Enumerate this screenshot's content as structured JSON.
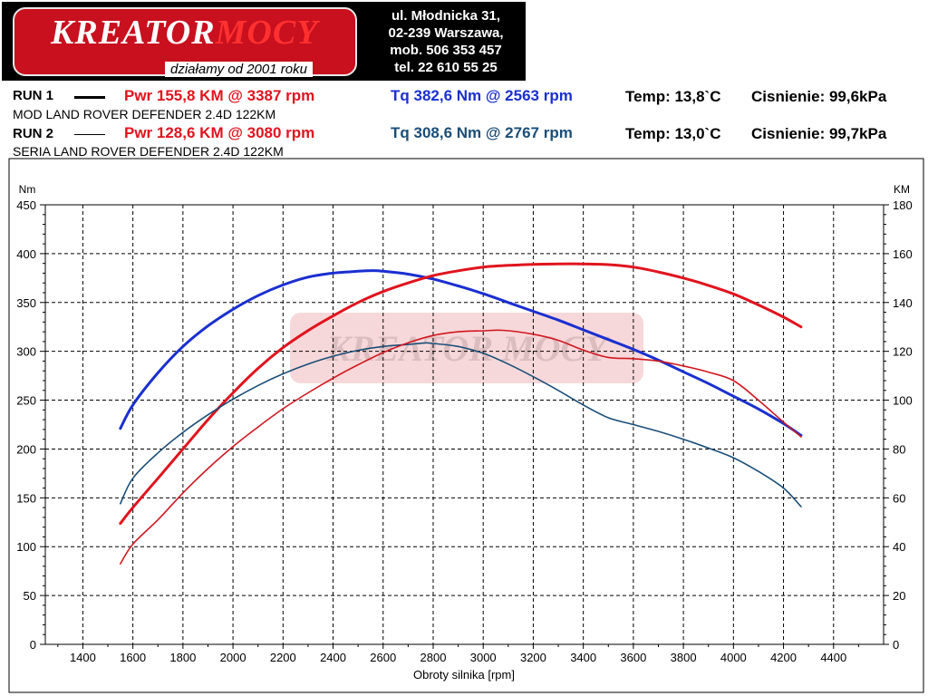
{
  "logo": {
    "brand_a": "KREATOR",
    "brand_b": "MOCY",
    "tagline": "działamy od 2001 roku"
  },
  "contact": {
    "line1": "ul. Młodnicka 31,",
    "line2": "02-239  Warszawa,",
    "line3": "mob.  506 353 457",
    "line4": "tel.  22 610 55 25"
  },
  "runs": [
    {
      "label": "RUN 1",
      "pwr": "Pwr  155,8 KM @ 3387 rpm",
      "tq": "Tq 382,6 Nm @ 2563 rpm",
      "temp": "Temp: 13,8`C",
      "pressure": "Cisnienie: 99,6kPa",
      "description": "MOD LAND ROVER DEFENDER 2.4D 122KM"
    },
    {
      "label": "RUN 2",
      "pwr": "Pwr  128,6 KM @ 3080 rpm",
      "tq": "Tq 308,6 Nm @ 2767 rpm",
      "temp": "Temp: 13,0`C",
      "pressure": "Cisnienie: 99,7kPa",
      "description": "SERIA LAND ROVER DEFENDER 2.4D 122KM"
    }
  ],
  "chart_data": {
    "type": "line",
    "xlabel": "Obroty silnika [rpm]",
    "ylabel_left": "Nm",
    "ylabel_right": "KM",
    "xlim": [
      1250,
      4600
    ],
    "ylim_left": [
      0,
      450
    ],
    "ylim_right": [
      0,
      180
    ],
    "x_ticks": [
      1400,
      1600,
      1800,
      2000,
      2200,
      2400,
      2600,
      2800,
      3000,
      3200,
      3400,
      3600,
      3800,
      4000,
      4200,
      4400
    ],
    "y_ticks_left": [
      0,
      50,
      100,
      150,
      200,
      250,
      300,
      350,
      400,
      450
    ],
    "y_ticks_right": [
      0,
      20,
      40,
      60,
      80,
      100,
      120,
      140,
      160,
      180
    ],
    "grid": true,
    "watermark": "KREATOR MOCY",
    "series": [
      {
        "name": "Tq RUN 1",
        "axis": "left",
        "color": "#1a2fd0",
        "width": 3,
        "x": [
          1550,
          1600,
          1700,
          1800,
          1900,
          2000,
          2100,
          2200,
          2300,
          2400,
          2500,
          2563,
          2600,
          2700,
          2800,
          2900,
          3000,
          3100,
          3200,
          3300,
          3400,
          3500,
          3600,
          3700,
          3800,
          3900,
          4000,
          4100,
          4200,
          4270
        ],
        "y": [
          221,
          245,
          278,
          305,
          326,
          343,
          357,
          368,
          376,
          380,
          382,
          382.6,
          382,
          379,
          374,
          367,
          359,
          350,
          341,
          332,
          322,
          312,
          302,
          291,
          279,
          267,
          254,
          241,
          226,
          214
        ]
      },
      {
        "name": "Pwr RUN 1",
        "axis": "right",
        "color": "#e0141e",
        "width": 3,
        "x": [
          1550,
          1600,
          1700,
          1800,
          1900,
          2000,
          2100,
          2200,
          2300,
          2400,
          2500,
          2600,
          2700,
          2800,
          2900,
          3000,
          3100,
          3200,
          3300,
          3387,
          3500,
          3600,
          3700,
          3800,
          3900,
          4000,
          4100,
          4200,
          4270
        ],
        "y": [
          49.5,
          56,
          68,
          80,
          92,
          103,
          113,
          121.5,
          128.5,
          134.5,
          140,
          144.5,
          148,
          151,
          153,
          154.5,
          155.2,
          155.6,
          155.8,
          155.8,
          155.5,
          154.5,
          152.5,
          150,
          147,
          143.5,
          139,
          134,
          130
        ]
      },
      {
        "name": "Tq RUN 2",
        "axis": "left",
        "color": "#1a4e78",
        "width": 1.6,
        "x": [
          1550,
          1600,
          1700,
          1800,
          1900,
          2000,
          2100,
          2200,
          2300,
          2400,
          2500,
          2600,
          2700,
          2767,
          2800,
          2900,
          3000,
          3100,
          3200,
          3300,
          3400,
          3500,
          3600,
          3700,
          3800,
          3900,
          4000,
          4100,
          4200,
          4270
        ],
        "y": [
          144,
          170,
          196,
          217,
          235,
          251,
          265,
          277,
          287,
          295,
          301,
          305,
          307,
          308.6,
          308,
          305,
          298,
          287,
          274,
          260,
          245,
          232,
          225,
          218,
          210,
          201,
          191,
          177,
          160,
          141
        ]
      },
      {
        "name": "Pwr RUN 2",
        "axis": "right",
        "color": "#d01820",
        "width": 1.6,
        "x": [
          1550,
          1600,
          1700,
          1800,
          1900,
          2000,
          2100,
          2200,
          2300,
          2400,
          2500,
          2600,
          2700,
          2800,
          2900,
          3000,
          3080,
          3200,
          3300,
          3400,
          3500,
          3600,
          3700,
          3800,
          3900,
          4000,
          4100,
          4200,
          4270
        ],
        "y": [
          33,
          41,
          51,
          62,
          72,
          81,
          89,
          96.5,
          103,
          109,
          114.5,
          119.5,
          123.5,
          126.5,
          128,
          128.4,
          128.6,
          127,
          124.5,
          120.5,
          117.5,
          117,
          116,
          114,
          111.5,
          108,
          100,
          91,
          85
        ]
      }
    ]
  }
}
